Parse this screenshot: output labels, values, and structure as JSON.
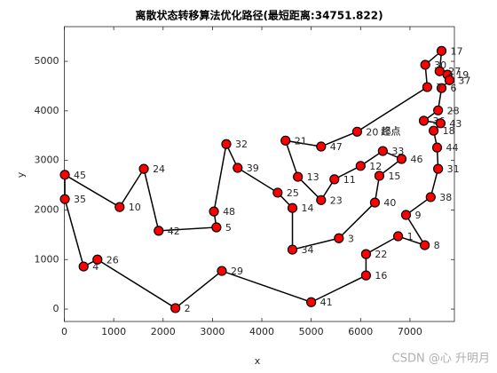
{
  "chart_data": {
    "type": "route",
    "title": "离散状态转移算法优化路径(最短距离:34751.822)",
    "x_label": "x",
    "y_label": "y",
    "xlim": [
      0,
      7900
    ],
    "ylim": [
      -250,
      5700
    ],
    "xticks": [
      0,
      1000,
      2000,
      3000,
      4000,
      5000,
      6000,
      7000
    ],
    "yticks": [
      0,
      1000,
      2000,
      3000,
      4000,
      5000
    ],
    "grid": false,
    "series": [
      {
        "type": "line",
        "color": "#000000",
        "x": [
          5930,
          7350,
          7310,
          7640,
          7600,
          7760,
          7800,
          7640,
          7570,
          7280,
          7620,
          7480,
          7550,
          7570,
          7420,
          6920,
          7300,
          6760,
          6110,
          6110,
          5000,
          3190,
          2250,
          670,
          390,
          10,
          10,
          1120,
          1610,
          1910,
          3080,
          3030,
          3280,
          3510,
          4320,
          4620,
          4620,
          5560,
          6290,
          6380,
          6830,
          6450,
          6000,
          5470,
          5200,
          4730,
          4480,
          5200,
          5930
        ],
        "y": [
          3580,
          4480,
          4930,
          5210,
          4800,
          4730,
          4620,
          4460,
          4010,
          3800,
          3750,
          3600,
          3260,
          2830,
          2260,
          1900,
          1290,
          1470,
          1110,
          680,
          140,
          770,
          20,
          1000,
          860,
          2220,
          2710,
          2060,
          2830,
          1580,
          1650,
          1970,
          3330,
          2850,
          2350,
          2040,
          1200,
          1430,
          2150,
          2690,
          3030,
          3190,
          2890,
          2620,
          2200,
          2670,
          3400,
          3280,
          3580
        ]
      },
      {
        "type": "scatter",
        "color": "#ff0000",
        "x": [
          6760,
          2250,
          5560,
          390,
          3080,
          7640,
          7350,
          7300,
          6920,
          1120,
          5470,
          6000,
          4730,
          4620,
          6380,
          6110,
          7640,
          7480,
          7760,
          5930,
          4480,
          6110,
          5200,
          1610,
          4320,
          670,
          7600,
          7570,
          3190,
          7310,
          7570,
          3280,
          6450,
          4620,
          10,
          7280,
          7800,
          7420,
          3510,
          6290,
          5000,
          1910,
          7620,
          7550,
          10,
          6830,
          5200,
          3030
        ],
        "y": [
          1470,
          20,
          1430,
          860,
          1650,
          4460,
          4480,
          1290,
          1900,
          2060,
          2620,
          2890,
          2670,
          2040,
          2690,
          680,
          5210,
          3600,
          4730,
          3580,
          3400,
          1110,
          2200,
          2830,
          2350,
          1000,
          4800,
          4010,
          770,
          4930,
          2830,
          3330,
          3190,
          1200,
          2220,
          3800,
          4620,
          2260,
          2850,
          2150,
          140,
          1580,
          3750,
          3260,
          2710,
          3030,
          3280,
          1970
        ],
        "labels": [
          "1",
          "2",
          "3",
          "4",
          "5",
          "6",
          "7",
          "8",
          "9",
          "10",
          "11",
          "12",
          "13",
          "14",
          "15",
          "16",
          "17",
          "18",
          "19",
          "20",
          "21",
          "22",
          "23",
          "24",
          "25",
          "26",
          "27",
          "28",
          "29",
          "30",
          "31",
          "32",
          "33",
          "34",
          "35",
          "36",
          "37",
          "38",
          "39",
          "40",
          "41",
          "42",
          "43",
          "44",
          "45",
          "46",
          "47",
          "48"
        ]
      }
    ],
    "annotations": [
      "起点",
      "终点"
    ],
    "watermark": "CSDN @心 升明月"
  }
}
